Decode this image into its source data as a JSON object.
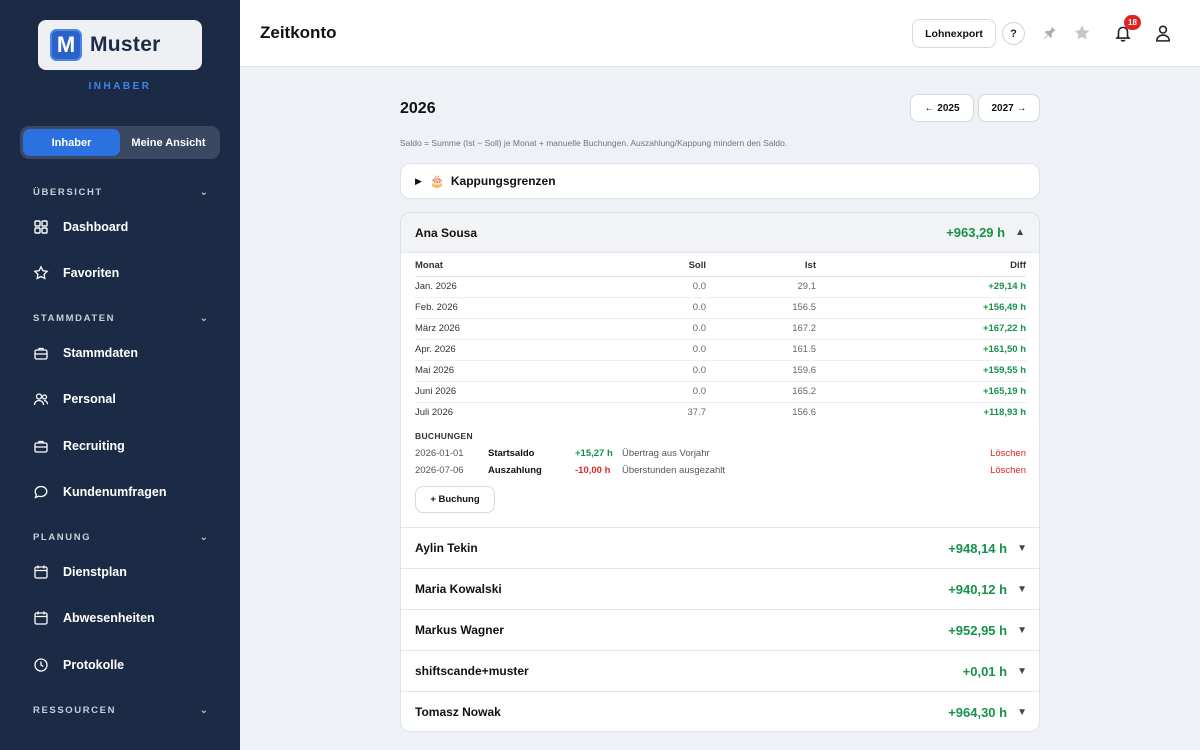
{
  "brand": {
    "name": "Muster",
    "logo_letter": "M",
    "role": "INHABER"
  },
  "view_toggle": {
    "options": [
      "Inhaber",
      "Meine Ansicht"
    ],
    "active": "Inhaber"
  },
  "sidebar": {
    "sections": [
      {
        "label": "ÜBERSICHT"
      },
      {
        "label": "STAMMDATEN"
      },
      {
        "label": "PLANUNG"
      },
      {
        "label": "RESSOURCEN"
      }
    ],
    "items": [
      {
        "label": "Dashboard",
        "icon": "grid-icon"
      },
      {
        "label": "Favoriten",
        "icon": "star-icon"
      },
      {
        "label": "Stammdaten",
        "icon": "briefcase-icon"
      },
      {
        "label": "Personal",
        "icon": "people-icon"
      },
      {
        "label": "Recruiting",
        "icon": "briefcase-icon"
      },
      {
        "label": "Kundenumfragen",
        "icon": "chat-icon"
      },
      {
        "label": "Dienstplan",
        "icon": "calendar-icon"
      },
      {
        "label": "Abwesenheiten",
        "icon": "calendar-icon"
      },
      {
        "label": "Protokolle",
        "icon": "clock-icon"
      }
    ]
  },
  "header": {
    "title": "Zeitkonto",
    "export_label": "Lohnexport",
    "help_label": "?",
    "notification_count": "18"
  },
  "year": {
    "title": "2026",
    "prev_label": "← 2025",
    "next_label": "2027 →",
    "note": "Saldo = Summe (Ist − Soll) je Monat + manuelle Buchungen. Auszahlung/Kappung mindern den Saldo."
  },
  "caps": {
    "label": "Kappungsgrenzen",
    "icon": "🎂"
  },
  "expanded": {
    "name": "Ana Sousa",
    "total": "+963,29 h",
    "columns": [
      "Monat",
      "Soll",
      "Ist",
      "Diff"
    ],
    "rows": [
      {
        "month": "Jan. 2026",
        "soll": "0.0",
        "ist": "29.1",
        "diff": "+29,14 h"
      },
      {
        "month": "Feb. 2026",
        "soll": "0.0",
        "ist": "156.5",
        "diff": "+156,49 h"
      },
      {
        "month": "März 2026",
        "soll": "0.0",
        "ist": "167.2",
        "diff": "+167,22 h"
      },
      {
        "month": "Apr. 2026",
        "soll": "0.0",
        "ist": "161.5",
        "diff": "+161,50 h"
      },
      {
        "month": "Mai 2026",
        "soll": "0.0",
        "ist": "159.6",
        "diff": "+159,55 h"
      },
      {
        "month": "Juni 2026",
        "soll": "0.0",
        "ist": "165.2",
        "diff": "+165,19 h"
      },
      {
        "month": "Juli 2026",
        "soll": "37.7",
        "ist": "156.6",
        "diff": "+118,93 h"
      }
    ],
    "bookings_title": "BUCHUNGEN",
    "bookings": [
      {
        "date": "2026-01-01",
        "type": "Startsaldo",
        "amount": "+15,27 h",
        "sign": "pos",
        "text": "Übertrag aus Vorjahr",
        "delete": "Löschen"
      },
      {
        "date": "2026-07-06",
        "type": "Auszahlung",
        "amount": "-10,00 h",
        "sign": "neg",
        "text": "Überstunden ausgezahlt",
        "delete": "Löschen"
      }
    ],
    "add_label": "+ Buchung"
  },
  "employees": [
    {
      "name": "Aylin Tekin",
      "total": "+948,14 h"
    },
    {
      "name": "Maria Kowalski",
      "total": "+940,12 h"
    },
    {
      "name": "Markus Wagner",
      "total": "+952,95 h"
    },
    {
      "name": "shiftscande+muster",
      "total": "+0,01 h"
    },
    {
      "name": "Tomasz Nowak",
      "total": "+964,30 h"
    }
  ],
  "colors": {
    "sidebar": "#1b2a45",
    "accent": "#2b72e0",
    "positive": "#17924a",
    "negative": "#e02424"
  }
}
